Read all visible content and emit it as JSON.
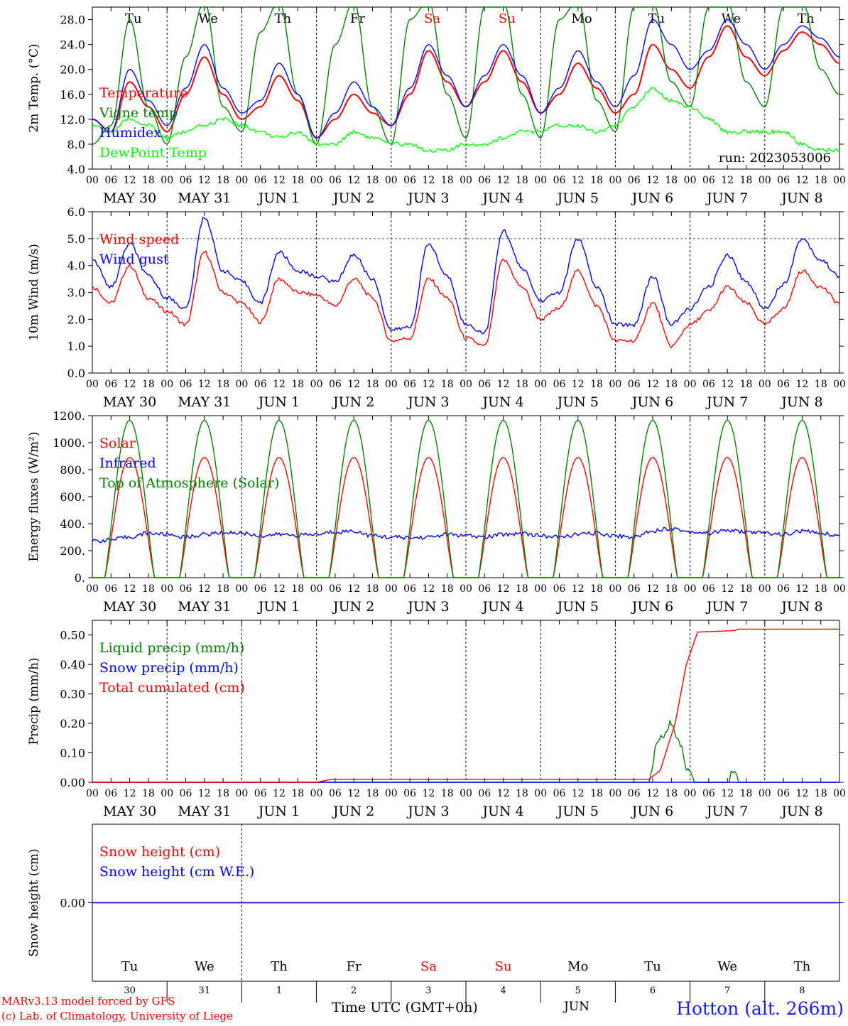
{
  "chart_data": [
    {
      "type": "line",
      "ylabel": "2m Temp. (°C)",
      "ylim": [
        4,
        30
      ],
      "yticks": [
        "4.0",
        "8.0",
        "12.0",
        "16.0",
        "20.0",
        "24.0",
        "28.0"
      ],
      "yticks_values": [
        4,
        8,
        12,
        16,
        20,
        24,
        28
      ],
      "run_label": "run: 2023053006",
      "show_day_names": true,
      "series": [
        {
          "name": "Temperature",
          "color": "#ff0000",
          "kind": "diurnal",
          "x": [
            0,
            0.25,
            0.5,
            0.75,
            1,
            1.25,
            1.5,
            1.75,
            2,
            2.25,
            2.5,
            2.75,
            3,
            3.25,
            3.5,
            3.75,
            4,
            4.25,
            4.5,
            4.75,
            5,
            5.25,
            5.5,
            5.75,
            6,
            6.25,
            6.5,
            6.75,
            7,
            7.25,
            7.5,
            7.75,
            8,
            8.25,
            8.5,
            8.75,
            9,
            9.25,
            9.5,
            9.75,
            10
          ],
          "y": [
            12,
            10,
            18,
            14,
            10,
            16,
            22,
            16,
            12,
            14,
            19,
            15,
            9,
            12,
            16,
            13,
            11,
            16,
            23,
            18,
            14,
            18,
            23,
            18,
            13,
            16,
            21,
            17,
            13,
            16,
            24,
            20,
            17,
            22,
            27,
            22,
            19,
            23,
            26,
            24,
            21
          ]
        },
        {
          "name": "Vigne temp",
          "color": "#008000",
          "kind": "diurnal",
          "x": [
            0,
            0.25,
            0.5,
            0.75,
            1,
            1.25,
            1.5,
            1.75,
            2,
            2.25,
            2.5,
            2.75,
            3,
            3.25,
            3.5,
            3.75,
            4,
            4.25,
            4.5,
            4.75,
            5,
            5.25,
            5.5,
            5.75,
            6,
            6.25,
            6.5,
            6.75,
            7,
            7.25,
            7.5,
            7.75,
            8,
            8.25,
            8.5,
            8.75,
            9,
            9.25,
            9.5,
            9.75,
            10
          ],
          "y": [
            8,
            11,
            28,
            14,
            8,
            22,
            31,
            14,
            10,
            26,
            31,
            16,
            8,
            24,
            31,
            14,
            8,
            28,
            31,
            16,
            9,
            30,
            31,
            16,
            9,
            28,
            31,
            15,
            10,
            30,
            31,
            18,
            14,
            30,
            31,
            18,
            14,
            30,
            31,
            20,
            16
          ]
        },
        {
          "name": "Humidex",
          "color": "#0000ff",
          "kind": "diurnal",
          "x": [
            0,
            0.25,
            0.5,
            0.75,
            1,
            1.25,
            1.5,
            1.75,
            2,
            2.25,
            2.5,
            2.75,
            3,
            3.25,
            3.5,
            3.75,
            4,
            4.25,
            4.5,
            4.75,
            5,
            5.25,
            5.5,
            5.75,
            6,
            6.25,
            6.5,
            6.75,
            7,
            7.25,
            7.5,
            7.75,
            8,
            8.25,
            8.5,
            8.75,
            9,
            9.25,
            9.5,
            9.75,
            10
          ],
          "y": [
            12,
            10,
            20,
            15,
            11,
            17,
            24,
            17,
            13,
            15,
            21,
            16,
            9,
            13,
            18,
            14,
            11,
            17,
            24,
            19,
            14,
            19,
            24,
            19,
            13,
            17,
            23,
            18,
            14,
            19,
            28,
            24,
            20,
            23,
            28,
            24,
            20,
            24,
            27,
            25,
            22
          ]
        },
        {
          "name": "DewPoint Temp",
          "color": "#00ff00",
          "kind": "noisy",
          "x": [
            0,
            0.25,
            0.5,
            0.75,
            1,
            1.25,
            1.5,
            1.75,
            2,
            2.25,
            2.5,
            2.75,
            3,
            3.25,
            3.5,
            3.75,
            4,
            4.25,
            4.5,
            4.75,
            5,
            5.25,
            5.5,
            5.75,
            6,
            6.25,
            6.5,
            6.75,
            7,
            7.25,
            7.5,
            7.75,
            8,
            8.25,
            8.5,
            8.75,
            9,
            9.25,
            9.5,
            9.75,
            10
          ],
          "y": [
            11,
            10,
            12,
            11,
            9,
            10,
            11,
            12,
            11,
            10,
            9,
            10,
            8,
            8,
            10,
            9,
            8,
            8,
            7,
            7,
            8,
            8,
            9,
            10,
            10,
            11,
            11,
            10,
            11,
            14,
            17,
            15,
            14,
            12,
            10,
            10,
            10,
            10,
            8,
            7,
            7
          ]
        }
      ]
    },
    {
      "type": "line",
      "ylabel": "10m Wind (m/s)",
      "ylim": [
        0,
        6
      ],
      "yticks": [
        "0.0",
        "1.0",
        "2.0",
        "3.0",
        "4.0",
        "5.0",
        "6.0"
      ],
      "yticks_values": [
        0,
        1,
        2,
        3,
        4,
        5,
        6
      ],
      "hline": 5,
      "show_day_names": false,
      "series": [
        {
          "name": "Wind speed",
          "color": "#ff0000",
          "kind": "noisy",
          "x": [
            0,
            0.25,
            0.5,
            0.75,
            1,
            1.25,
            1.5,
            1.75,
            2,
            2.25,
            2.5,
            2.75,
            3,
            3.25,
            3.5,
            3.75,
            4,
            4.25,
            4.5,
            4.75,
            5,
            5.25,
            5.5,
            5.75,
            6,
            6.25,
            6.5,
            6.75,
            7,
            7.25,
            7.5,
            7.75,
            8,
            8.25,
            8.5,
            8.75,
            9,
            9.25,
            9.5,
            9.75,
            10
          ],
          "y": [
            3.2,
            2.6,
            4.0,
            2.8,
            2.3,
            1.8,
            4.5,
            3.0,
            2.6,
            1.9,
            3.5,
            3.0,
            2.9,
            2.5,
            3.5,
            2.8,
            1.2,
            1.3,
            3.5,
            2.8,
            1.3,
            1.0,
            4.2,
            3.2,
            2.0,
            2.4,
            3.8,
            2.5,
            1.2,
            1.2,
            2.6,
            1.0,
            1.8,
            2.3,
            3.2,
            2.6,
            1.8,
            2.4,
            3.8,
            3.2,
            2.6
          ]
        },
        {
          "name": "Wind gust",
          "color": "#0000ff",
          "kind": "noisy",
          "x": [
            0,
            0.25,
            0.5,
            0.75,
            1,
            1.25,
            1.5,
            1.75,
            2,
            2.25,
            2.5,
            2.75,
            3,
            3.25,
            3.5,
            3.75,
            4,
            4.25,
            4.5,
            4.75,
            5,
            5.25,
            5.5,
            5.75,
            6,
            6.25,
            6.5,
            6.75,
            7,
            7.25,
            7.5,
            7.75,
            8,
            8.25,
            8.5,
            8.75,
            9,
            9.25,
            9.5,
            9.75,
            10
          ],
          "y": [
            4.2,
            3.2,
            4.8,
            3.6,
            2.8,
            2.4,
            5.8,
            3.8,
            3.4,
            2.6,
            4.5,
            3.8,
            3.6,
            3.4,
            4.4,
            3.5,
            1.6,
            1.7,
            4.8,
            3.6,
            1.8,
            1.5,
            5.3,
            3.9,
            2.7,
            3.0,
            5.0,
            3.2,
            1.8,
            1.8,
            3.6,
            1.8,
            2.4,
            3.2,
            4.4,
            3.4,
            2.4,
            3.3,
            5.0,
            4.2,
            3.6
          ]
        }
      ]
    },
    {
      "type": "line",
      "ylabel": "Energy fluxes (W/m²)",
      "ylim": [
        0,
        1200
      ],
      "yticks": [
        "0.",
        "200.",
        "400.",
        "600.",
        "800.",
        "1000.",
        "1200."
      ],
      "yticks_values": [
        0,
        200,
        400,
        600,
        800,
        1000,
        1200
      ],
      "show_day_names": false,
      "series": [
        {
          "name": "Solar",
          "color": "#ff0000",
          "kind": "solar",
          "peak": 890,
          "x": [
            0,
            0.25,
            0.5,
            0.75,
            1,
            1.25,
            1.5,
            1.75,
            2,
            2.25,
            2.5,
            2.75,
            3,
            3.25,
            3.5,
            3.75,
            4,
            4.25,
            4.5,
            4.75,
            5,
            5.25,
            5.5,
            5.75,
            6,
            6.25,
            6.5,
            6.75,
            7,
            7.25,
            7.5,
            7.75,
            8,
            8.25,
            8.5,
            8.75,
            9,
            9.25,
            9.5,
            9.75,
            10
          ],
          "y": [
            0,
            0,
            880,
            0,
            0,
            0,
            890,
            0,
            0,
            0,
            890,
            0,
            0,
            0,
            890,
            0,
            0,
            0,
            885,
            0,
            0,
            0,
            890,
            0,
            0,
            0,
            890,
            0,
            0,
            0,
            885,
            0,
            0,
            0,
            880,
            0,
            0,
            0,
            890,
            0,
            0
          ]
        },
        {
          "name": "Infrared",
          "color": "#0000ff",
          "kind": "noisy",
          "x": [
            0,
            0.25,
            0.5,
            0.75,
            1,
            1.25,
            1.5,
            1.75,
            2,
            2.25,
            2.5,
            2.75,
            3,
            3.25,
            3.5,
            3.75,
            4,
            4.25,
            4.5,
            4.75,
            5,
            5.25,
            5.5,
            5.75,
            6,
            6.25,
            6.5,
            6.75,
            7,
            7.25,
            7.5,
            7.75,
            8,
            8.25,
            8.5,
            8.75,
            9,
            9.25,
            9.5,
            9.75,
            10
          ],
          "y": [
            270,
            280,
            300,
            330,
            320,
            300,
            320,
            335,
            330,
            310,
            320,
            315,
            320,
            340,
            345,
            310,
            300,
            295,
            300,
            320,
            310,
            300,
            320,
            330,
            310,
            300,
            320,
            330,
            310,
            300,
            350,
            365,
            340,
            330,
            350,
            340,
            330,
            320,
            345,
            330,
            310
          ]
        },
        {
          "name": "Top of Atmosphere (Solar)",
          "color": "#008000",
          "kind": "solar",
          "peak": 1165,
          "x": [
            0,
            0.25,
            0.5,
            0.75,
            1,
            1.25,
            1.5,
            1.75,
            2,
            2.25,
            2.5,
            2.75,
            3,
            3.25,
            3.5,
            3.75,
            4,
            4.25,
            4.5,
            4.75,
            5,
            5.25,
            5.5,
            5.75,
            6,
            6.25,
            6.5,
            6.75,
            7,
            7.25,
            7.5,
            7.75,
            8,
            8.25,
            8.5,
            8.75,
            9,
            9.25,
            9.5,
            9.75,
            10
          ],
          "y": [
            0,
            0,
            1165,
            0,
            0,
            0,
            1165,
            0,
            0,
            0,
            1165,
            0,
            0,
            0,
            1165,
            0,
            0,
            0,
            1165,
            0,
            0,
            0,
            1165,
            0,
            0,
            0,
            1165,
            0,
            0,
            0,
            1165,
            0,
            0,
            0,
            1165,
            0,
            0,
            0,
            1165,
            0,
            0
          ]
        }
      ]
    },
    {
      "type": "line",
      "ylabel": "Precip (mm/h)",
      "ylim": [
        0,
        0.55
      ],
      "yticks": [
        "0.00",
        "0.10",
        "0.20",
        "0.30",
        "0.40",
        "0.50"
      ],
      "yticks_values": [
        0,
        0.1,
        0.2,
        0.3,
        0.4,
        0.5
      ],
      "show_day_names": false,
      "series": [
        {
          "name": "Liquid precip (mm/h)",
          "color": "#008000",
          "kind": "noisy",
          "x": [
            0,
            1,
            2,
            3,
            4,
            5,
            6,
            7.45,
            7.55,
            7.65,
            7.75,
            7.85,
            7.95,
            8.1,
            8.5,
            8.55,
            8.6,
            8.65,
            10
          ],
          "y": [
            0,
            0,
            0,
            0,
            0,
            0,
            0,
            0,
            0.12,
            0.16,
            0.2,
            0.14,
            0.05,
            0,
            0,
            0.03,
            0.04,
            0,
            0
          ]
        },
        {
          "name": "Snow precip (mm/h)",
          "color": "#0000ff",
          "kind": "step",
          "x": [
            0,
            10
          ],
          "y": [
            0,
            0
          ]
        },
        {
          "name": "Total cumulated (cm)",
          "color": "#ff0000",
          "kind": "step",
          "x": [
            0,
            3.0,
            3.2,
            7.45,
            7.6,
            7.8,
            7.95,
            8.1,
            8.6,
            8.65,
            10
          ],
          "y": [
            0,
            0,
            0.01,
            0.01,
            0.04,
            0.2,
            0.4,
            0.51,
            0.515,
            0.52,
            0.52
          ]
        }
      ]
    },
    {
      "type": "line",
      "ylabel": "Snow height (cm)",
      "ylim": [
        -1,
        1
      ],
      "yticks": [
        "0.00"
      ],
      "yticks_values": [
        0
      ],
      "show_day_names": false,
      "series": [
        {
          "name": "Snow height (cm)",
          "color": "#ff0000",
          "kind": "step",
          "x": [
            0,
            10
          ],
          "y": [
            0,
            0
          ]
        },
        {
          "name": "Snow height (cm W.E.)",
          "color": "#0000ff",
          "kind": "step",
          "x": [
            0,
            10
          ],
          "y": [
            0,
            0
          ]
        }
      ]
    }
  ],
  "days": {
    "names": [
      "Tu",
      "We",
      "Th",
      "Fr",
      "Sa",
      "Su",
      "Mo",
      "Tu",
      "We",
      "Th"
    ],
    "name_colors": [
      "#000000",
      "#000000",
      "#000000",
      "#000000",
      "#ff0000",
      "#ff0000",
      "#000000",
      "#000000",
      "#000000",
      "#000000"
    ],
    "dates": [
      "MAY 30",
      "MAY 31",
      "JUN  1",
      "JUN  2",
      "JUN  3",
      "JUN  4",
      "JUN  5",
      "JUN  6",
      "JUN  7",
      "JUN  8"
    ],
    "numbers": [
      "30",
      "31",
      "1",
      "2",
      "3",
      "4",
      "5",
      "6",
      "7",
      "8"
    ],
    "hour_ticks": [
      "00",
      "06",
      "12",
      "18"
    ],
    "end_tick": "00"
  },
  "bottom": {
    "time_label": "Time UTC (GMT+0h)",
    "month": "JUN",
    "credit_line1": "MARv3.13 model forced by GFS",
    "credit_line2": "(c) Lab. of Climatology, University of Liege",
    "station": "Hotton (alt. 266m)"
  }
}
